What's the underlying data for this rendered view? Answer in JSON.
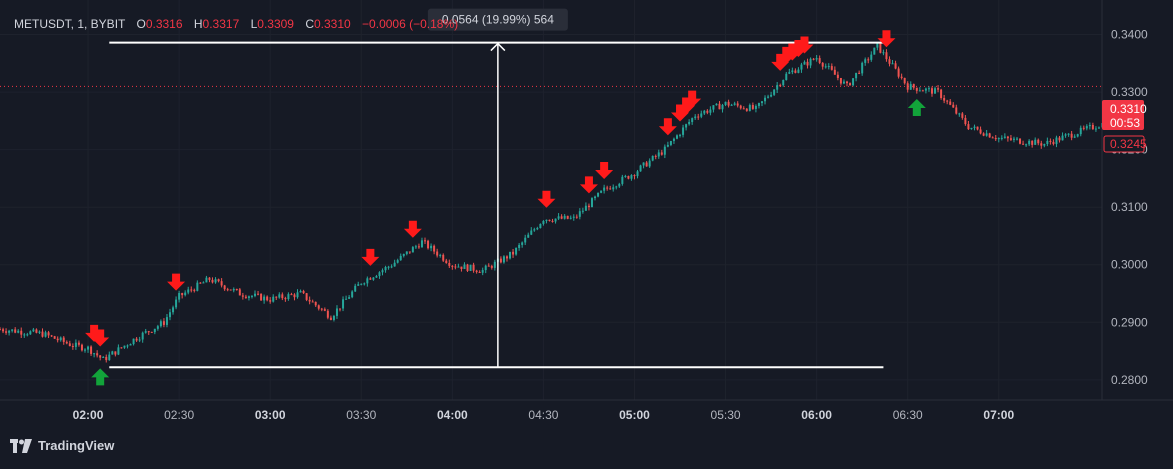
{
  "header": {
    "symbol": "METUSDT, 1, BYBIT",
    "open_label": "O",
    "open": "0.3316",
    "high_label": "H",
    "high": "0.3317",
    "low_label": "L",
    "low": "0.3309",
    "close_label": "C",
    "close": "0.3310",
    "change": "−0.0006 (−0.18%)"
  },
  "measure_tooltip": "0.0564 (19.99%) 564",
  "price_badge": {
    "price": "0.3310",
    "countdown": "00:53",
    "last_line_price": "0.3245"
  },
  "brand": "TradingView",
  "colors": {
    "up": "#26a69a",
    "down": "#ef5350",
    "background": "#161a25",
    "sell_marker": "#ff1a1a",
    "buy_marker": "#12a33a"
  },
  "chart_data": {
    "type": "candlestick",
    "x_ticks": [
      "02:00",
      "02:30",
      "03:00",
      "03:30",
      "04:00",
      "04:30",
      "05:00",
      "05:30",
      "06:00",
      "06:30",
      "07:00"
    ],
    "bold_x_ticks": [
      "02:00",
      "03:00",
      "04:00",
      "05:00",
      "06:00",
      "07:00"
    ],
    "y_ticks": [
      "0.3400",
      "0.3300",
      "0.3200",
      "0.3100",
      "0.3000",
      "0.2900",
      "0.2800"
    ],
    "ylim": [
      0.2765,
      0.346
    ],
    "xlim": [
      "01:31",
      "07:34"
    ],
    "current_price": 0.331,
    "measure": {
      "from_time": "02:07",
      "to_time": "06:22",
      "low": 0.2822,
      "high": 0.3386,
      "label_time": "04:15"
    },
    "price_path": [
      [
        "01:31",
        0.2888
      ],
      [
        "01:45",
        0.288
      ],
      [
        "01:55",
        0.286
      ],
      [
        "02:00",
        0.2855
      ],
      [
        "02:05",
        0.2835
      ],
      [
        "02:15",
        0.287
      ],
      [
        "02:25",
        0.29
      ],
      [
        "02:30",
        0.2945
      ],
      [
        "02:40",
        0.2975
      ],
      [
        "02:50",
        0.295
      ],
      [
        "03:00",
        0.294
      ],
      [
        "03:10",
        0.295
      ],
      [
        "03:20",
        0.291
      ],
      [
        "03:30",
        0.297
      ],
      [
        "03:40",
        0.3
      ],
      [
        "03:50",
        0.304
      ],
      [
        "04:00",
        0.3
      ],
      [
        "04:10",
        0.299
      ],
      [
        "04:20",
        0.302
      ],
      [
        "04:30",
        0.308
      ],
      [
        "04:40",
        0.308
      ],
      [
        "04:50",
        0.313
      ],
      [
        "05:00",
        0.316
      ],
      [
        "05:10",
        0.32
      ],
      [
        "05:20",
        0.326
      ],
      [
        "05:30",
        0.328
      ],
      [
        "05:40",
        0.327
      ],
      [
        "05:50",
        0.333
      ],
      [
        "06:00",
        0.336
      ],
      [
        "06:10",
        0.331
      ],
      [
        "06:20",
        0.338
      ],
      [
        "06:30",
        0.331
      ],
      [
        "06:40",
        0.33
      ],
      [
        "06:50",
        0.324
      ],
      [
        "07:00",
        0.322
      ],
      [
        "07:15",
        0.321
      ],
      [
        "07:34",
        0.3245
      ]
    ],
    "sell_signals": [
      "02:02",
      "02:04",
      "02:29",
      "03:33",
      "03:47",
      "04:31",
      "04:45",
      "04:50",
      "05:11",
      "05:15",
      "05:17",
      "05:19",
      "05:48",
      "05:50",
      "05:52",
      "05:54",
      "05:56",
      "06:23"
    ],
    "buy_signals": [
      "02:04",
      "06:33"
    ]
  }
}
